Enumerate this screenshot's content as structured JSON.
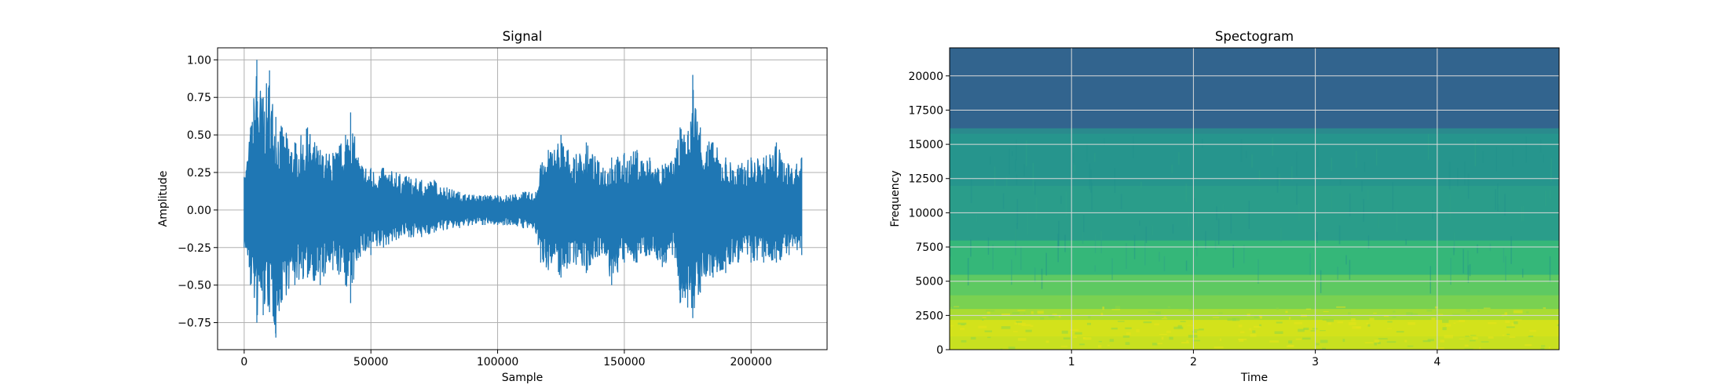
{
  "chart_data": [
    {
      "type": "line",
      "title": "Signal",
      "xlabel": "Sample",
      "ylabel": "Amplitude",
      "xlim": [
        -10500,
        230000
      ],
      "ylim": [
        -0.93,
        1.08
      ],
      "xticks": [
        0,
        50000,
        100000,
        150000,
        200000
      ],
      "xtick_labels": [
        "0",
        "50000",
        "100000",
        "150000",
        "200000"
      ],
      "yticks": [
        -0.75,
        -0.5,
        -0.25,
        0.0,
        0.25,
        0.5,
        0.75,
        1.0
      ],
      "ytick_labels": [
        "−0.75",
        "−0.50",
        "−0.25",
        "0.00",
        "0.25",
        "0.50",
        "0.75",
        "1.00"
      ],
      "grid": true,
      "line_color": "#1f77b4",
      "series": [
        {
          "x": [
            0,
            2500,
            5000,
            7500,
            10000,
            12500,
            15000,
            20000,
            25000,
            30000,
            35000,
            40000,
            42000,
            45000,
            50000,
            55000,
            60000,
            65000,
            70000,
            75000,
            80000,
            85000,
            90000,
            95000,
            100000,
            105000,
            110000,
            115000,
            117000,
            120000,
            125000,
            130000,
            135000,
            140000,
            145000,
            150000,
            155000,
            160000,
            165000,
            170000,
            172000,
            175000,
            177000,
            180000,
            185000,
            190000,
            195000,
            200000,
            205000,
            210000,
            215000,
            220000
          ],
          "y_max": [
            0.22,
            0.55,
            1.0,
            0.75,
            0.93,
            0.62,
            0.55,
            0.45,
            0.55,
            0.4,
            0.38,
            0.5,
            0.65,
            0.35,
            0.28,
            0.28,
            0.25,
            0.22,
            0.2,
            0.2,
            0.15,
            0.12,
            0.1,
            0.1,
            0.1,
            0.1,
            0.12,
            0.12,
            0.3,
            0.4,
            0.5,
            0.35,
            0.45,
            0.32,
            0.35,
            0.38,
            0.4,
            0.35,
            0.3,
            0.35,
            0.55,
            0.5,
            0.9,
            0.55,
            0.45,
            0.35,
            0.3,
            0.35,
            0.35,
            0.45,
            0.3,
            0.35
          ],
          "y_min": [
            -0.25,
            -0.5,
            -0.75,
            -0.7,
            -0.68,
            -0.85,
            -0.6,
            -0.5,
            -0.45,
            -0.5,
            -0.4,
            -0.5,
            -0.62,
            -0.32,
            -0.3,
            -0.25,
            -0.2,
            -0.18,
            -0.18,
            -0.15,
            -0.13,
            -0.12,
            -0.1,
            -0.1,
            -0.1,
            -0.1,
            -0.12,
            -0.15,
            -0.35,
            -0.4,
            -0.45,
            -0.35,
            -0.42,
            -0.3,
            -0.5,
            -0.35,
            -0.35,
            -0.3,
            -0.38,
            -0.32,
            -0.62,
            -0.65,
            -0.72,
            -0.55,
            -0.45,
            -0.42,
            -0.35,
            -0.35,
            -0.35,
            -0.35,
            -0.3,
            -0.3
          ]
        }
      ]
    },
    {
      "type": "heatmap",
      "title": "Spectogram",
      "xlabel": "Time",
      "ylabel": "Frequency",
      "xlim": [
        0,
        5
      ],
      "ylim": [
        0,
        22050
      ],
      "xticks": [
        1,
        2,
        3,
        4
      ],
      "xtick_labels": [
        "1",
        "2",
        "3",
        "4"
      ],
      "yticks": [
        0,
        2500,
        5000,
        7500,
        10000,
        12500,
        15000,
        17500,
        20000
      ],
      "ytick_labels": [
        "0",
        "2500",
        "5000",
        "7500",
        "10000",
        "12500",
        "15000",
        "17500",
        "20000"
      ],
      "grid": true,
      "colormap": "viridis",
      "bands": [
        {
          "from": 0,
          "to": 1000,
          "color": "#c8e020"
        },
        {
          "from": 1000,
          "to": 2200,
          "color": "#d3e21b"
        },
        {
          "from": 2200,
          "to": 3000,
          "color": "#aadc32"
        },
        {
          "from": 3000,
          "to": 4000,
          "color": "#7ad151"
        },
        {
          "from": 4000,
          "to": 5500,
          "color": "#5ec962"
        },
        {
          "from": 5500,
          "to": 8000,
          "color": "#35b779"
        },
        {
          "from": 8000,
          "to": 12000,
          "color": "#2a9d8a"
        },
        {
          "from": 12000,
          "to": 15800,
          "color": "#26958d"
        },
        {
          "from": 15800,
          "to": 16200,
          "color": "#2a8a8d"
        },
        {
          "from": 16200,
          "to": 22050,
          "color": "#32648e"
        }
      ]
    }
  ]
}
